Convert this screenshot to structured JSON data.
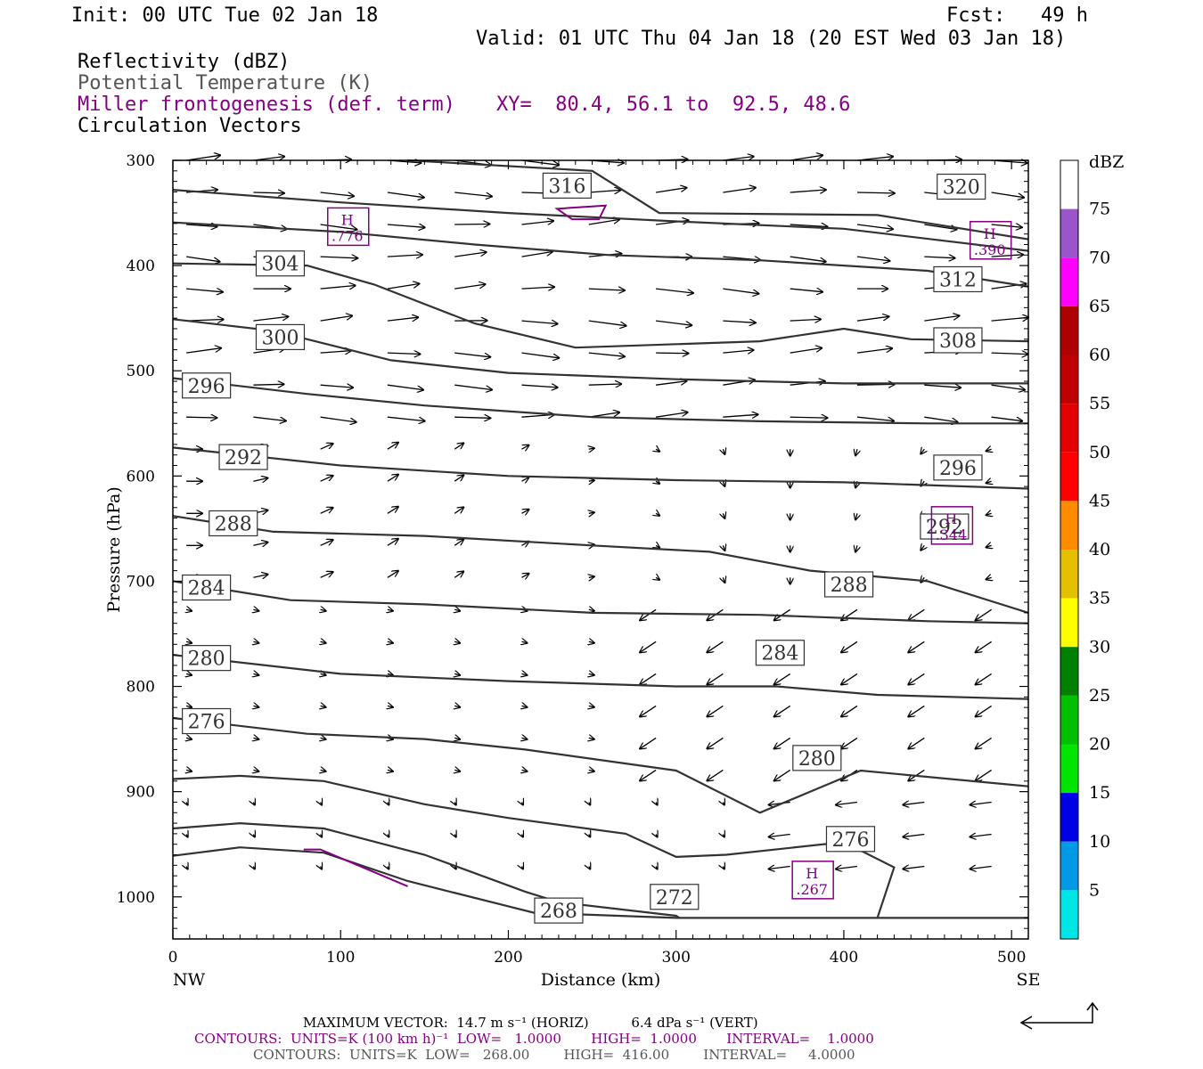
{
  "header": {
    "init": "Init: 00 UTC Tue 02 Jan 18",
    "fcst": "Fcst:   49 h",
    "valid": "Valid: 01 UTC Thu 04 Jan 18 (20 EST Wed 03 Jan 18)",
    "fields": [
      {
        "label": "Reflectivity (dBZ)",
        "color": "#000000"
      },
      {
        "label": "Potential Temperature (K)",
        "color": "#555555"
      },
      {
        "label": "Miller frontogenesis (def. term)",
        "color": "#800080"
      },
      {
        "label": "Circulation Vectors",
        "color": "#000000"
      }
    ],
    "xy": "XY=  80.4, 56.1 to  92.5, 48.6"
  },
  "chart_data": {
    "type": "cross-section",
    "xlabel": "Distance (km)",
    "ylabel": "Pressure (hPa)",
    "xlim": [
      0,
      510
    ],
    "ylim": [
      1040,
      300
    ],
    "x_ticks": [
      0,
      100,
      200,
      300,
      400,
      500
    ],
    "y_ticks": [
      300,
      400,
      500,
      600,
      700,
      800,
      900,
      1000
    ],
    "x_end_labels": {
      "left": "NW",
      "right": "SE"
    },
    "theta_contours": [
      {
        "label": "320",
        "label_at": [
          470,
          325
        ],
        "points": [
          [
            140,
            300
          ],
          [
            250,
            310
          ],
          [
            290,
            350
          ],
          [
            420,
            352
          ],
          [
            510,
            375
          ]
        ]
      },
      {
        "label": "316",
        "label_at": [
          235,
          324
        ],
        "points": [
          [
            0,
            328
          ],
          [
            100,
            340
          ],
          [
            200,
            350
          ],
          [
            300,
            358
          ],
          [
            400,
            365
          ],
          [
            510,
            386
          ]
        ]
      },
      {
        "label": "312",
        "label_at": [
          468,
          413
        ],
        "points": [
          [
            0,
            359
          ],
          [
            100,
            368
          ],
          [
            180,
            380
          ],
          [
            260,
            390
          ],
          [
            350,
            395
          ],
          [
            450,
            405
          ],
          [
            510,
            420
          ]
        ]
      },
      {
        "label": "308",
        "label_at": [
          468,
          471
        ],
        "points": [
          [
            0,
            398
          ],
          [
            80,
            400
          ],
          [
            120,
            418
          ],
          [
            180,
            455
          ],
          [
            240,
            478
          ],
          [
            350,
            472
          ],
          [
            400,
            460
          ],
          [
            440,
            470
          ],
          [
            510,
            472
          ]
        ]
      },
      {
        "label": "304",
        "label_at": [
          64,
          398
        ],
        "points": []
      },
      {
        "label": "300",
        "label_at": [
          64,
          468
        ],
        "points": [
          [
            0,
            451
          ],
          [
            60,
            462
          ],
          [
            130,
            490
          ],
          [
            200,
            502
          ],
          [
            300,
            508
          ],
          [
            400,
            512
          ],
          [
            510,
            512
          ]
        ]
      },
      {
        "label": "296",
        "label_at": [
          20,
          514
        ],
        "points": [
          [
            0,
            507
          ],
          [
            80,
            522
          ],
          [
            150,
            533
          ],
          [
            250,
            544
          ],
          [
            350,
            548
          ],
          [
            450,
            550
          ],
          [
            510,
            550
          ]
        ]
      },
      {
        "label": "296",
        "label_at": [
          468,
          592
        ],
        "points": [
          [
            0,
            573
          ],
          [
            100,
            590
          ],
          [
            200,
            600
          ],
          [
            300,
            604
          ],
          [
            400,
            606
          ],
          [
            510,
            612
          ]
        ]
      },
      {
        "label": "292",
        "label_at": [
          42,
          582
        ],
        "points": []
      },
      {
        "label": "292",
        "label_at": [
          460,
          648
        ],
        "points": [
          [
            0,
            638
          ],
          [
            60,
            653
          ],
          [
            150,
            657
          ],
          [
            250,
            666
          ],
          [
            320,
            672
          ],
          [
            380,
            690
          ],
          [
            450,
            700
          ],
          [
            510,
            730
          ]
        ]
      },
      {
        "label": "288",
        "label_at": [
          36,
          645
        ],
        "points": []
      },
      {
        "label": "288",
        "label_at": [
          403,
          703
        ],
        "points": [
          [
            0,
            700
          ],
          [
            70,
            718
          ],
          [
            150,
            722
          ],
          [
            250,
            730
          ],
          [
            350,
            732
          ],
          [
            450,
            738
          ],
          [
            510,
            740
          ]
        ]
      },
      {
        "label": "284",
        "label_at": [
          20,
          706
        ],
        "points": []
      },
      {
        "label": "284",
        "label_at": [
          362,
          768
        ],
        "points": [
          [
            0,
            770
          ],
          [
            100,
            788
          ],
          [
            200,
            795
          ],
          [
            300,
            800
          ],
          [
            360,
            800
          ],
          [
            420,
            808
          ],
          [
            510,
            812
          ]
        ]
      },
      {
        "label": "280",
        "label_at": [
          20,
          773
        ],
        "points": []
      },
      {
        "label": "280",
        "label_at": [
          384,
          868
        ],
        "points": [
          [
            0,
            830
          ],
          [
            80,
            845
          ],
          [
            150,
            850
          ],
          [
            210,
            860
          ],
          [
            300,
            880
          ],
          [
            350,
            920
          ],
          [
            410,
            880
          ],
          [
            510,
            895
          ]
        ]
      },
      {
        "label": "276",
        "label_at": [
          20,
          833
        ],
        "points": []
      },
      {
        "label": "276",
        "label_at": [
          404,
          945
        ],
        "points": [
          [
            0,
            888
          ],
          [
            40,
            885
          ],
          [
            90,
            890
          ],
          [
            150,
            912
          ],
          [
            200,
            925
          ],
          [
            270,
            940
          ],
          [
            300,
            962
          ],
          [
            330,
            960
          ],
          [
            400,
            948
          ],
          [
            430,
            972
          ],
          [
            420,
            1020
          ]
        ]
      },
      {
        "label": "272",
        "label_at": [
          299,
          1000
        ],
        "points": [
          [
            0,
            935
          ],
          [
            40,
            930
          ],
          [
            90,
            935
          ],
          [
            150,
            960
          ],
          [
            210,
            995
          ],
          [
            230,
            1005
          ],
          [
            300,
            1018
          ],
          [
            302,
            1020
          ]
        ]
      },
      {
        "label": "268",
        "label_at": [
          230,
          1013
        ],
        "points": [
          [
            0,
            961
          ],
          [
            40,
            953
          ],
          [
            90,
            958
          ],
          [
            140,
            985
          ],
          [
            215,
            1015
          ],
          [
            300,
            1020
          ],
          [
            400,
            1020
          ],
          [
            510,
            1020
          ]
        ]
      }
    ],
    "frontogenesis_maxima": [
      {
        "label": "H",
        "value": ".776",
        "at": [
          104,
          363
        ]
      },
      {
        "label": "H",
        "value": ".390",
        "at": [
          487,
          376
        ]
      },
      {
        "label": "H",
        "value": ".344",
        "at": [
          464,
          647
        ]
      },
      {
        "label": "H",
        "value": ".267",
        "at": [
          381,
          984
        ]
      }
    ],
    "dbz_colorbar": {
      "unit": "dBZ",
      "levels": [
        5,
        10,
        15,
        20,
        25,
        30,
        35,
        40,
        45,
        50,
        55,
        60,
        65,
        70,
        75
      ],
      "colors": [
        "#00E5E5",
        "#0099E5",
        "#0000E5",
        "#00E500",
        "#00C000",
        "#008000",
        "#FFFF00",
        "#E5C000",
        "#FF8C00",
        "#FF0000",
        "#E50000",
        "#BE0000",
        "#AF0000",
        "#FF00FF",
        "#9955C9"
      ]
    }
  },
  "footer": {
    "max_vector": "MAXIMUM VECTOR:  14.7 m s⁻¹ (HORIZ)          6.4 dPa s⁻¹ (VERT)",
    "contours_purple": "CONTOURS:  UNITS=K (100 km h)⁻¹  LOW=   1.0000       HIGH=  1.0000       INTERVAL=    1.0000",
    "contours_black": "CONTOURS:  UNITS=K  LOW=   268.00        HIGH=  416.00        INTERVAL=     4.0000"
  }
}
